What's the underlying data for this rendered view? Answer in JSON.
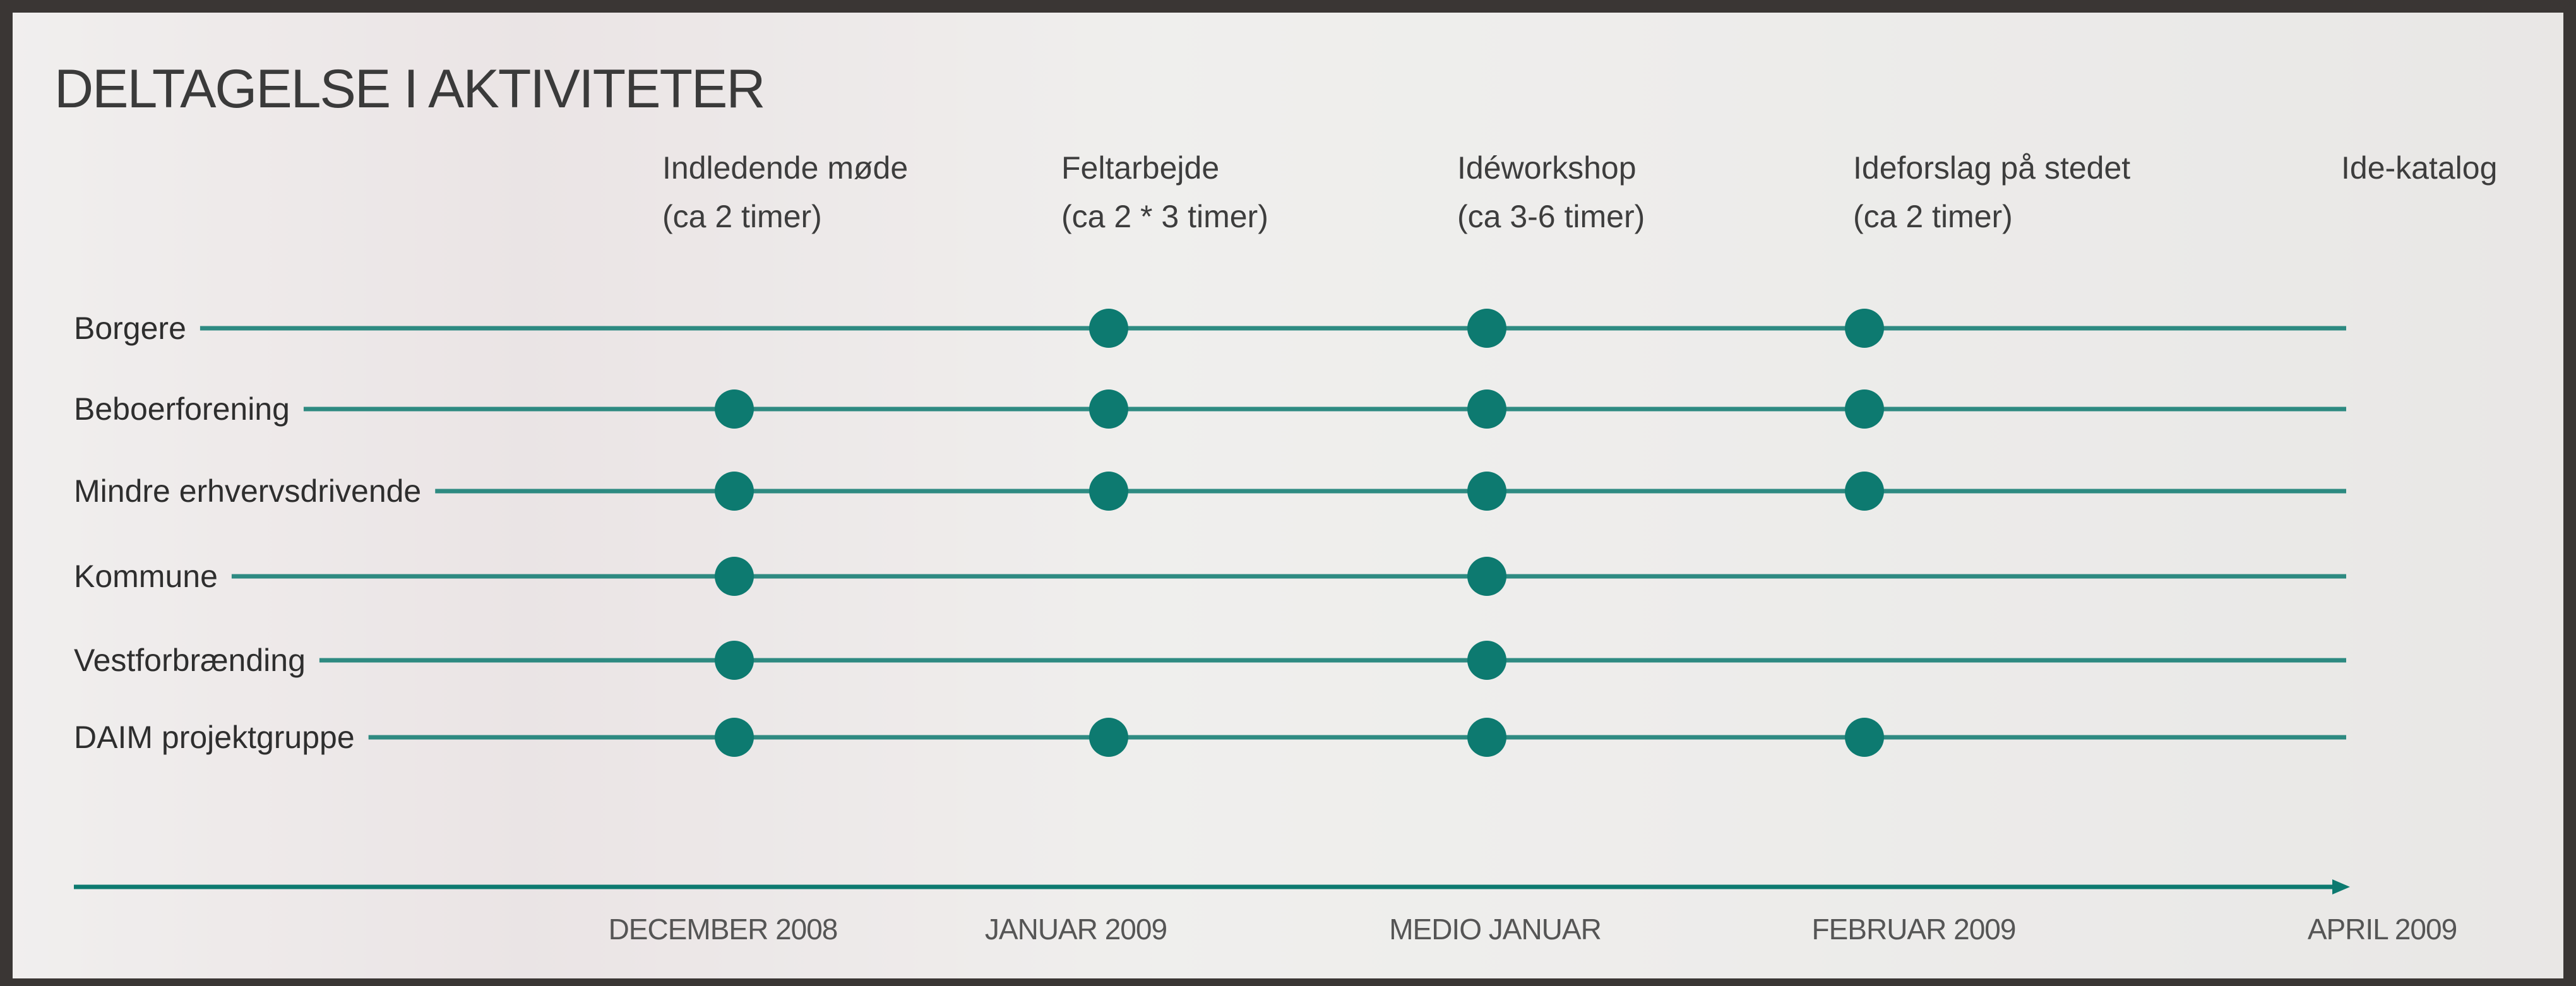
{
  "title": "DELTAGELSE I AKTIVITETER",
  "activities": [
    {
      "name": "Indledende møde",
      "duration": "(ca 2 timer)"
    },
    {
      "name": "Feltarbejde",
      "duration": "(ca 2 * 3 timer)"
    },
    {
      "name": "Idéworkshop",
      "duration": "(ca 3-6 timer)"
    },
    {
      "name": "Ideforslag på stedet",
      "duration": "(ca 2 timer)"
    },
    {
      "name": "Ide-katalog"
    }
  ],
  "groups": [
    {
      "name": "Borgere",
      "participates": [
        false,
        true,
        true,
        true
      ]
    },
    {
      "name": "Beboerforening",
      "participates": [
        true,
        true,
        true,
        true
      ]
    },
    {
      "name": "Mindre erhvervsdrivende",
      "participates": [
        true,
        true,
        true,
        true
      ]
    },
    {
      "name": "Kommune",
      "participates": [
        true,
        false,
        true,
        false
      ]
    },
    {
      "name": "Vestforbrænding",
      "participates": [
        true,
        false,
        true,
        false
      ]
    },
    {
      "name": "DAIM projektgruppe",
      "participates": [
        true,
        true,
        true,
        true
      ]
    }
  ],
  "timeline": [
    "DECEMBER 2008",
    "JANUAR 2009",
    "MEDIO JANUAR",
    "FEBRUAR 2009",
    "APRIL 2009"
  ]
}
